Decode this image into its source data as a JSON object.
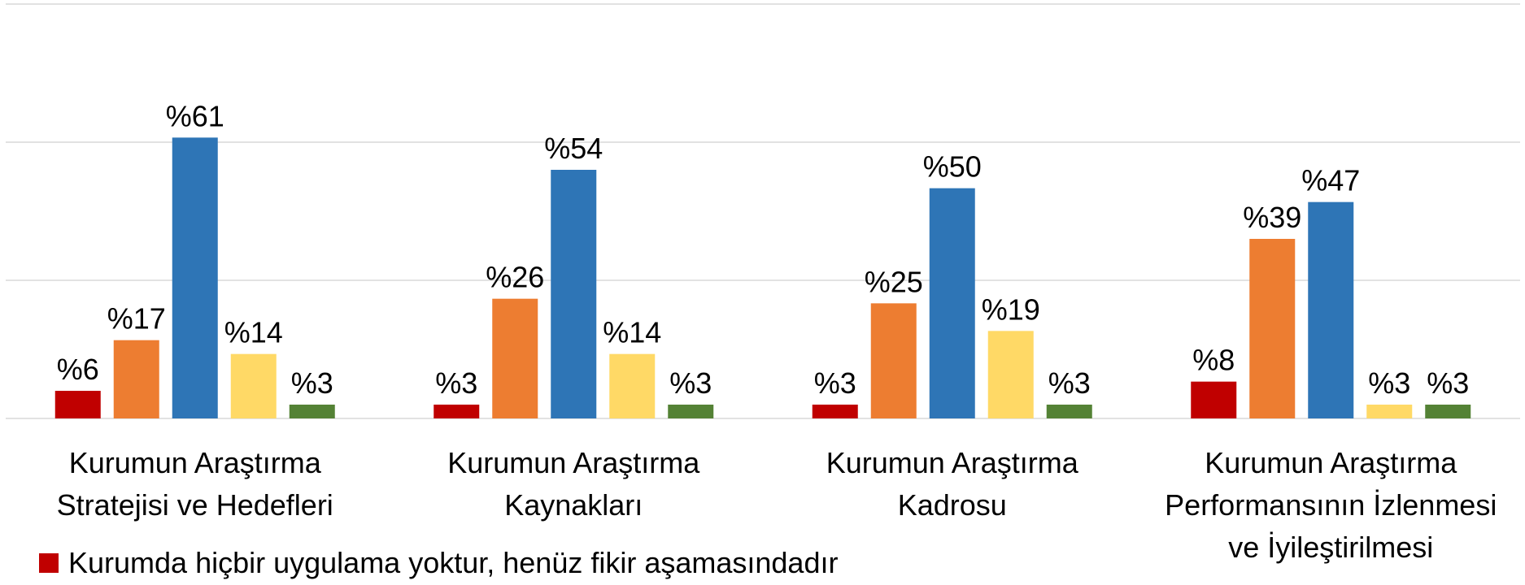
{
  "chart_data": {
    "type": "bar",
    "categories": [
      "Kurumun Araştırma\nStratejisi ve Hedefleri",
      "Kurumun Araştırma\nKaynakları",
      "Kurumun Araştırma\nKadrosu",
      "Kurumun Araştırma\nPerformansının İzlenmesi\nve İyileştirilmesi"
    ],
    "series": [
      {
        "name": "Kurumda hiçbir uygulama yoktur, henüz fikir aşamasındadır",
        "color": "#c00000",
        "values": [
          6,
          3,
          3,
          8
        ],
        "value_labels": [
          "%6",
          "%3",
          "%3",
          "%8"
        ]
      },
      {
        "color": "#ed7d31",
        "values": [
          17,
          26,
          25,
          39
        ],
        "value_labels": [
          "%17",
          "%26",
          "%25",
          "%39"
        ]
      },
      {
        "color": "#2e75b6",
        "values": [
          61,
          54,
          50,
          47
        ],
        "value_labels": [
          "%61",
          "%54",
          "%50",
          "%47"
        ]
      },
      {
        "color": "#ffd966",
        "values": [
          14,
          14,
          19,
          3
        ],
        "value_labels": [
          "%14",
          "%14",
          "%19",
          "%3"
        ]
      },
      {
        "color": "#548235",
        "values": [
          3,
          3,
          3,
          3
        ],
        "value_labels": [
          "%3",
          "%3",
          "%3",
          "%3"
        ]
      }
    ],
    "ylim": [
      0,
      90
    ],
    "yticks": [
      0,
      30,
      60,
      90
    ],
    "grid": true,
    "ytick_labels": false,
    "legend": "bottom-left"
  }
}
